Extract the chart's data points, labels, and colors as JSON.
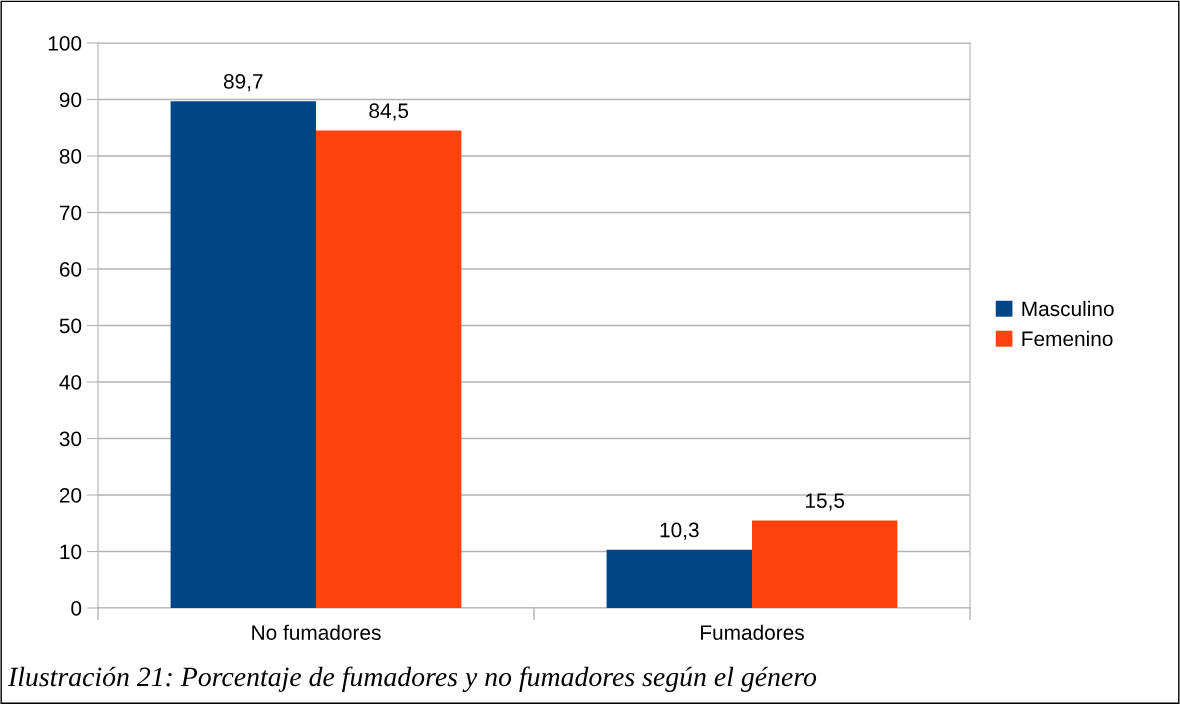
{
  "chart_data": {
    "type": "bar",
    "categories": [
      "No fumadores",
      "Fumadores"
    ],
    "series": [
      {
        "name": "Masculino",
        "color": "#004586",
        "values": [
          89.7,
          10.3
        ],
        "value_labels": [
          "89,7",
          "10,3"
        ]
      },
      {
        "name": "Femenino",
        "color": "#ff420e",
        "values": [
          84.5,
          15.5
        ],
        "value_labels": [
          "84,5",
          "15,5"
        ]
      }
    ],
    "ylim": [
      0,
      100
    ],
    "yticks": [
      0,
      10,
      20,
      30,
      40,
      50,
      60,
      70,
      80,
      90,
      100
    ],
    "grid": "y",
    "legend": "right",
    "annotations": [
      "Ilustración 21: Porcentaje de fumadores y no fumadores según el género"
    ]
  }
}
